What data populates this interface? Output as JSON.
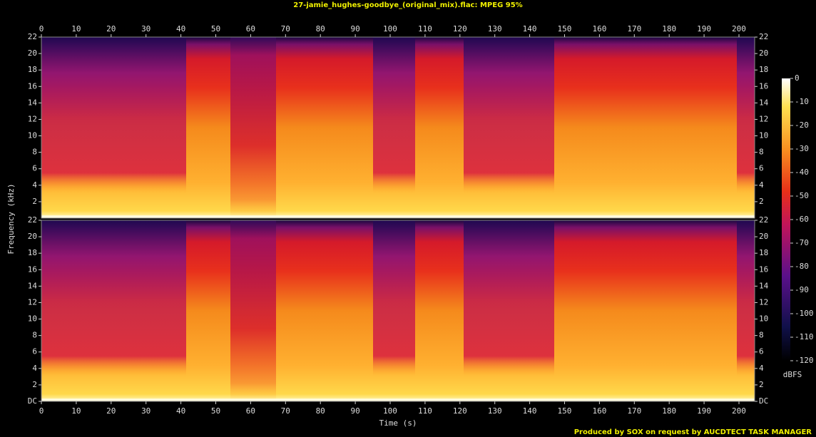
{
  "chart_data": [
    {
      "type": "spectrogram",
      "title": "27-jamie_hughes-goodbye_(original_mix).flac: MPEG 95%",
      "ylabel": "Frequency (kHz)",
      "xlim": [
        0,
        204.5
      ],
      "xticks": [
        0,
        10,
        20,
        30,
        40,
        50,
        60,
        70,
        80,
        90,
        100,
        110,
        120,
        130,
        140,
        150,
        160,
        170,
        180,
        190,
        200
      ],
      "ylim": [
        0,
        22
      ],
      "yticks": [
        2,
        4,
        6,
        8,
        10,
        12,
        14,
        16,
        18,
        20,
        22
      ],
      "colorbar": {
        "label": "dBFS",
        "lim": [
          -120,
          0
        ],
        "ticks": [
          0,
          -10,
          -20,
          -30,
          -40,
          -50,
          -60,
          -70,
          -80,
          -90,
          -100,
          -110,
          -120
        ]
      }
    },
    {
      "type": "spectrogram",
      "xlabel": "Time (s)",
      "xlim": [
        0,
        204.5
      ],
      "xticks": [
        0,
        10,
        20,
        30,
        40,
        50,
        60,
        70,
        80,
        90,
        100,
        110,
        120,
        130,
        140,
        150,
        160,
        170,
        180,
        190,
        200
      ],
      "ylim": [
        0,
        22
      ],
      "yticks": [
        {
          "value": 0,
          "label": "DC"
        },
        2,
        4,
        6,
        8,
        10,
        12,
        14,
        16,
        18,
        20,
        22
      ]
    }
  ],
  "footer": "Produced by SOX on request by AUCDTECT TASK MANAGER"
}
